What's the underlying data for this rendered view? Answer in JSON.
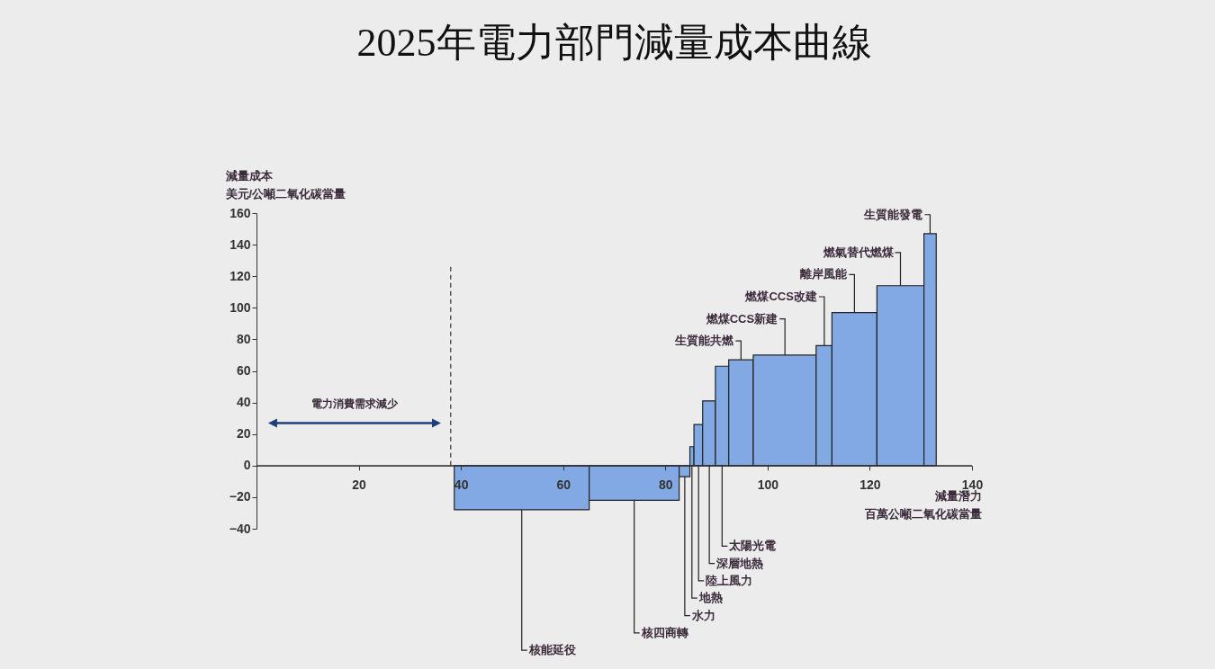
{
  "chart_data": {
    "type": "histogram",
    "title": "2025年電力部門減量成本曲線",
    "xlabel": "減量潛力百萬公噸二氧化碳當量",
    "ylabel": "減量成本美元/公噸二氧化碳當量",
    "bins": [
      38.7,
      65.1,
      82.7,
      84.8,
      85.6,
      87.3,
      89.8,
      92.4,
      97.2,
      109.5,
      112.6,
      121.4,
      130.6,
      133.0
    ],
    "values": [
      -28,
      -22,
      -7,
      12,
      26,
      41,
      63,
      67,
      70,
      76,
      97,
      114,
      147
    ],
    "color": "#82a9e3",
    "xlim": [
      0,
      140
    ],
    "xticks": [
      20,
      40,
      60,
      80,
      100,
      120,
      140
    ],
    "ylim": [
      -40,
      160
    ],
    "yticks": [
      -40,
      -20,
      0,
      20,
      40,
      60,
      80,
      100,
      120,
      140,
      160
    ],
    "ref_lines": [
      {
        "axis": "x",
        "value": 38,
        "line_style": "dashed"
      }
    ],
    "annotations": [
      {
        "text": "核能延役",
        "x": 51.9,
        "y": -28
      },
      {
        "text": "核四商轉",
        "x": 73.9,
        "y": -22
      },
      {
        "text": "水力",
        "x": 83.8,
        "y": -7
      },
      {
        "text": "地熱",
        "x": 85.2,
        "y": 12
      },
      {
        "text": "陸上風力",
        "x": 86.5,
        "y": 26
      },
      {
        "text": "深層地熱",
        "x": 88.6,
        "y": 41
      },
      {
        "text": "太陽光電",
        "x": 91.1,
        "y": 63
      },
      {
        "text": "生質能共燃",
        "x": 94.8,
        "y": 67
      },
      {
        "text": "燃煤CCS新建",
        "x": 103.4,
        "y": 70
      },
      {
        "text": "燃煤CCS改建",
        "x": 111.1,
        "y": 76
      },
      {
        "text": "離岸風能",
        "x": 117,
        "y": 97
      },
      {
        "text": "燃氣替代燃煤",
        "x": 126,
        "y": 114
      },
      {
        "text": "生質能發電",
        "x": 131.8,
        "y": 147
      },
      "電力消費需求減少"
    ]
  }
}
